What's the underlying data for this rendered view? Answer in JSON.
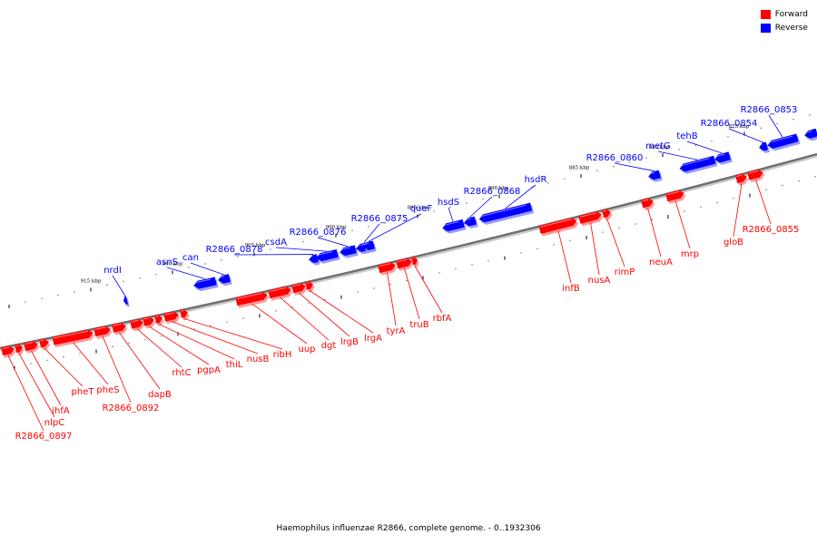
{
  "legend": {
    "forward_label": "Forward",
    "reverse_label": "Reverse",
    "forward_color": "#ff0000",
    "reverse_color": "#0000ff"
  },
  "caption": "Haemophilus influenzae R2866, complete genome. - 0..1932306",
  "ticks": [
    "915 kbp",
    "910 kbp",
    "905 kbp",
    "900 kbp",
    "895 kbp",
    "890 kbp",
    "885 kbp",
    "880 kbp",
    "875 kbp"
  ],
  "genes_forward": [
    "R2866_0897",
    "nlpC",
    "ihfA",
    "pheT",
    "pheS",
    "R2866_0892",
    "dapB",
    "rhtC",
    "pgpA",
    "thiL",
    "nusB",
    "ribH",
    "uup",
    "dgt",
    "lrgB",
    "lrgA",
    "tyrA",
    "truB",
    "rbfA",
    "infB",
    "nusA",
    "rimP",
    "neuA",
    "mrp",
    "gloB",
    "R2866_0855"
  ],
  "genes_reverse": [
    "nrdI",
    "asnS",
    "can",
    "R2866_0878",
    "csdA",
    "R2866_0876",
    "R2866_0875",
    "queF",
    "hsdS",
    "R2866_0868",
    "hsdR",
    "R2866_0860",
    "metG",
    "tehB",
    "R2866_0854",
    "R2866_0853"
  ]
}
